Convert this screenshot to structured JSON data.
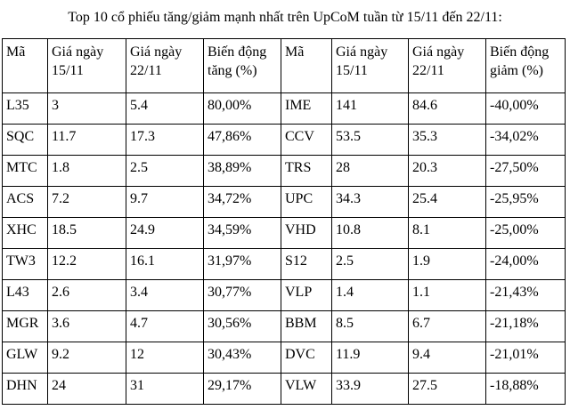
{
  "title": "Top 10 cổ phiếu tăng/giảm mạnh nhất trên UpCoM tuần từ 15/11 đến 22/11:",
  "headers": {
    "gain_code": "Mã",
    "gain_price_1": "Giá ngày 15/11",
    "gain_price_2": "Giá ngày 22/11",
    "gain_change": "Biến động tăng (%)",
    "loss_code": "Mã",
    "loss_price_1": "Giá ngày 15/11",
    "loss_price_2": "Giá ngày 22/11",
    "loss_change": "Biến động giảm (%)"
  },
  "rows": [
    [
      "L35",
      "3",
      "5.4",
      "80,00%",
      "IME",
      "141",
      "84.6",
      "-40,00%"
    ],
    [
      "SQC",
      "11.7",
      "17.3",
      "47,86%",
      "CCV",
      "53.5",
      "35.3",
      "-34,02%"
    ],
    [
      "MTC",
      "1.8",
      "2.5",
      "38,89%",
      "TRS",
      "28",
      "20.3",
      "-27,50%"
    ],
    [
      "ACS",
      "7.2",
      "9.7",
      "34,72%",
      "UPC",
      "34.3",
      "25.4",
      "-25,95%"
    ],
    [
      "XHC",
      "18.5",
      "24.9",
      "34,59%",
      "VHD",
      "10.8",
      "8.1",
      "-25,00%"
    ],
    [
      "TW3",
      "12.2",
      "16.1",
      "31,97%",
      "S12",
      "2.5",
      "1.9",
      "-24,00%"
    ],
    [
      "L43",
      "2.6",
      "3.4",
      "30,77%",
      "VLP",
      "1.4",
      "1.1",
      "-21,43%"
    ],
    [
      "MGR",
      "3.6",
      "4.7",
      "30,56%",
      "BBM",
      "8.5",
      "6.7",
      "-21,18%"
    ],
    [
      "GLW",
      "9.2",
      "12",
      "30,43%",
      "DVC",
      "11.9",
      "9.4",
      "-21,01%"
    ],
    [
      "DHN",
      "24",
      "31",
      "29,17%",
      "VLW",
      "33.9",
      "27.5",
      "-18,88%"
    ]
  ]
}
